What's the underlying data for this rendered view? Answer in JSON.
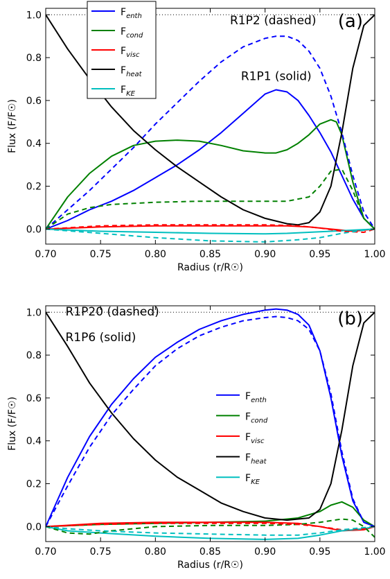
{
  "chart_data": [
    {
      "type": "line",
      "panel_label": "(a)",
      "xlabel": "Radius (r/R☉)",
      "ylabel": "Flux (F/F☉)",
      "xlim": [
        0.7,
        1.0
      ],
      "ylim": [
        -0.07,
        1.03
      ],
      "xticks": [
        "0.70",
        "0.75",
        "0.80",
        "0.85",
        "0.90",
        "0.95",
        "1.00"
      ],
      "yticks": [
        "0.0",
        "0.2",
        "0.4",
        "0.6",
        "0.8",
        "1.0"
      ],
      "reference_line": {
        "y": 1.0,
        "style": "dotted"
      },
      "legend_position": "top-left",
      "annotations": [
        {
          "text": "R1P2 (dashed)",
          "x": 0.868,
          "y": 0.955
        },
        {
          "text": "R1P1 (solid)",
          "x": 0.878,
          "y": 0.695
        }
      ],
      "series": [
        {
          "name": "F_enth",
          "legend": {
            "base": "F",
            "sub": "enth"
          },
          "run": "R1P1",
          "color": "#0000ff",
          "dash": "solid",
          "x": [
            0.7,
            0.72,
            0.74,
            0.76,
            0.78,
            0.8,
            0.82,
            0.84,
            0.86,
            0.88,
            0.9,
            0.91,
            0.92,
            0.93,
            0.94,
            0.95,
            0.96,
            0.97,
            0.98,
            0.99,
            1.0
          ],
          "y": [
            0.0,
            0.04,
            0.09,
            0.13,
            0.18,
            0.24,
            0.3,
            0.37,
            0.45,
            0.54,
            0.63,
            0.65,
            0.64,
            0.6,
            0.53,
            0.45,
            0.36,
            0.25,
            0.14,
            0.05,
            0.0
          ]
        },
        {
          "name": "F_cond",
          "legend": {
            "base": "F",
            "sub": "cond"
          },
          "run": "R1P1",
          "color": "#008000",
          "dash": "solid",
          "x": [
            0.7,
            0.72,
            0.74,
            0.76,
            0.78,
            0.8,
            0.82,
            0.84,
            0.86,
            0.88,
            0.9,
            0.91,
            0.92,
            0.93,
            0.94,
            0.95,
            0.96,
            0.965,
            0.97,
            0.98,
            0.99,
            1.0
          ],
          "y": [
            0.0,
            0.15,
            0.26,
            0.34,
            0.39,
            0.41,
            0.415,
            0.41,
            0.39,
            0.365,
            0.355,
            0.355,
            0.37,
            0.4,
            0.44,
            0.49,
            0.51,
            0.5,
            0.44,
            0.22,
            0.05,
            0.0
          ]
        },
        {
          "name": "F_visc",
          "legend": {
            "base": "F",
            "sub": "visc"
          },
          "run": "R1P1",
          "color": "#ff0000",
          "dash": "solid",
          "x": [
            0.7,
            0.75,
            0.8,
            0.85,
            0.9,
            0.92,
            0.94,
            0.96,
            0.97,
            0.98,
            1.0
          ],
          "y": [
            0.0,
            0.01,
            0.015,
            0.015,
            0.015,
            0.015,
            0.01,
            0.0,
            -0.005,
            -0.01,
            0.0
          ]
        },
        {
          "name": "F_heat",
          "legend": {
            "base": "F",
            "sub": "heat"
          },
          "run": "R1P1",
          "color": "#000000",
          "dash": "solid",
          "x": [
            0.7,
            0.72,
            0.74,
            0.76,
            0.78,
            0.8,
            0.82,
            0.84,
            0.86,
            0.88,
            0.9,
            0.92,
            0.93,
            0.94,
            0.95,
            0.96,
            0.97,
            0.98,
            0.99,
            1.0
          ],
          "y": [
            1.0,
            0.84,
            0.7,
            0.57,
            0.46,
            0.37,
            0.29,
            0.22,
            0.15,
            0.09,
            0.05,
            0.025,
            0.02,
            0.03,
            0.08,
            0.2,
            0.45,
            0.75,
            0.95,
            1.0
          ]
        },
        {
          "name": "F_KE",
          "legend": {
            "base": "F",
            "sub": "KE"
          },
          "run": "R1P1",
          "color": "#00bfbf",
          "dash": "solid",
          "x": [
            0.7,
            0.75,
            0.8,
            0.85,
            0.9,
            0.92,
            0.94,
            0.96,
            0.98,
            1.0
          ],
          "y": [
            0.0,
            -0.01,
            -0.015,
            -0.02,
            -0.022,
            -0.02,
            -0.015,
            -0.01,
            -0.005,
            0.0
          ]
        },
        {
          "name": "F_enth (R1P2)",
          "run": "R1P2",
          "color": "#0000ff",
          "dash": "dashed",
          "x": [
            0.7,
            0.72,
            0.74,
            0.76,
            0.78,
            0.8,
            0.82,
            0.84,
            0.86,
            0.88,
            0.9,
            0.91,
            0.92,
            0.93,
            0.94,
            0.95,
            0.96,
            0.97,
            0.98,
            0.99,
            1.0
          ],
          "y": [
            0.0,
            0.09,
            0.18,
            0.28,
            0.38,
            0.49,
            0.59,
            0.69,
            0.78,
            0.85,
            0.89,
            0.9,
            0.9,
            0.88,
            0.83,
            0.75,
            0.62,
            0.45,
            0.25,
            0.08,
            0.0
          ]
        },
        {
          "name": "F_cond (R1P2)",
          "run": "R1P2",
          "color": "#008000",
          "dash": "dashed",
          "x": [
            0.7,
            0.72,
            0.74,
            0.76,
            0.78,
            0.8,
            0.84,
            0.88,
            0.92,
            0.94,
            0.95,
            0.96,
            0.97,
            0.98,
            0.99,
            1.0
          ],
          "y": [
            0.0,
            0.07,
            0.1,
            0.115,
            0.12,
            0.125,
            0.13,
            0.13,
            0.13,
            0.15,
            0.2,
            0.27,
            0.28,
            0.18,
            0.05,
            0.0
          ]
        },
        {
          "name": "F_visc (R1P2)",
          "run": "R1P2",
          "color": "#ff0000",
          "dash": "dashed",
          "x": [
            0.7,
            0.75,
            0.8,
            0.85,
            0.9,
            0.93,
            0.95,
            0.97,
            0.99,
            1.0
          ],
          "y": [
            0.0,
            0.015,
            0.02,
            0.02,
            0.02,
            0.015,
            0.005,
            -0.01,
            -0.015,
            0.0
          ]
        },
        {
          "name": "F_KE (R1P2)",
          "run": "R1P2",
          "color": "#00bfbf",
          "dash": "dashed",
          "x": [
            0.7,
            0.75,
            0.8,
            0.85,
            0.9,
            0.93,
            0.95,
            0.97,
            0.99,
            1.0
          ],
          "y": [
            0.0,
            -0.02,
            -0.04,
            -0.055,
            -0.06,
            -0.05,
            -0.04,
            -0.02,
            -0.005,
            0.0
          ]
        }
      ]
    },
    {
      "type": "line",
      "panel_label": "(b)",
      "xlabel": "Radius (r/R☉)",
      "ylabel": "Flux (F/F☉)",
      "xlim": [
        0.7,
        1.0
      ],
      "ylim": [
        -0.07,
        1.03
      ],
      "xticks": [
        "0.70",
        "0.75",
        "0.80",
        "0.85",
        "0.90",
        "0.95",
        "1.00"
      ],
      "yticks": [
        "0.0",
        "0.2",
        "0.4",
        "0.6",
        "0.8",
        "1.0"
      ],
      "reference_line": {
        "y": 1.0,
        "style": "dotted"
      },
      "legend_position": "center-right",
      "annotations": [
        {
          "text": "R1P20 (dashed)",
          "x": 0.718,
          "y": 0.985
        },
        {
          "text": "R1P6 (solid)",
          "x": 0.718,
          "y": 0.865
        }
      ],
      "series": [
        {
          "name": "F_enth",
          "legend": {
            "base": "F",
            "sub": "enth"
          },
          "run": "R1P6",
          "color": "#0000ff",
          "dash": "solid",
          "x": [
            0.7,
            0.72,
            0.74,
            0.76,
            0.78,
            0.8,
            0.82,
            0.84,
            0.86,
            0.88,
            0.9,
            0.91,
            0.92,
            0.93,
            0.94,
            0.95,
            0.96,
            0.97,
            0.98,
            0.99,
            1.0
          ],
          "y": [
            0.0,
            0.23,
            0.42,
            0.57,
            0.69,
            0.79,
            0.86,
            0.92,
            0.96,
            0.99,
            1.01,
            1.015,
            1.01,
            0.99,
            0.94,
            0.82,
            0.6,
            0.33,
            0.12,
            0.02,
            0.0
          ]
        },
        {
          "name": "F_cond",
          "legend": {
            "base": "F",
            "sub": "cond"
          },
          "run": "R1P6",
          "color": "#008000",
          "dash": "solid",
          "x": [
            0.7,
            0.75,
            0.8,
            0.85,
            0.9,
            0.93,
            0.95,
            0.96,
            0.97,
            0.98,
            0.99,
            1.0
          ],
          "y": [
            0.0,
            0.01,
            0.015,
            0.02,
            0.025,
            0.04,
            0.07,
            0.1,
            0.115,
            0.09,
            0.03,
            0.0
          ]
        },
        {
          "name": "F_visc",
          "legend": {
            "base": "F",
            "sub": "visc"
          },
          "run": "R1P6",
          "color": "#ff0000",
          "dash": "solid",
          "x": [
            0.7,
            0.75,
            0.8,
            0.85,
            0.9,
            0.93,
            0.95,
            0.97,
            0.99,
            1.0
          ],
          "y": [
            0.0,
            0.015,
            0.02,
            0.02,
            0.02,
            0.015,
            0.0,
            -0.02,
            -0.015,
            0.0
          ]
        },
        {
          "name": "F_heat",
          "legend": {
            "base": "F",
            "sub": "heat"
          },
          "run": "R1P6",
          "color": "#000000",
          "dash": "solid",
          "x": [
            0.7,
            0.72,
            0.74,
            0.76,
            0.78,
            0.8,
            0.82,
            0.84,
            0.86,
            0.88,
            0.9,
            0.92,
            0.94,
            0.95,
            0.96,
            0.97,
            0.98,
            0.99,
            1.0
          ],
          "y": [
            1.0,
            0.84,
            0.67,
            0.53,
            0.41,
            0.31,
            0.23,
            0.17,
            0.11,
            0.07,
            0.04,
            0.03,
            0.04,
            0.08,
            0.2,
            0.45,
            0.75,
            0.95,
            1.0
          ]
        },
        {
          "name": "F_KE",
          "legend": {
            "base": "F",
            "sub": "KE"
          },
          "run": "R1P6",
          "color": "#00bfbf",
          "dash": "solid",
          "x": [
            0.7,
            0.72,
            0.75,
            0.8,
            0.85,
            0.9,
            0.93,
            0.95,
            0.97,
            0.99,
            1.0
          ],
          "y": [
            0.0,
            -0.02,
            -0.03,
            -0.045,
            -0.055,
            -0.06,
            -0.055,
            -0.04,
            -0.02,
            -0.01,
            0.0
          ]
        },
        {
          "name": "F_enth (R1P20)",
          "run": "R1P20",
          "color": "#0000ff",
          "dash": "dashed",
          "x": [
            0.7,
            0.72,
            0.74,
            0.76,
            0.78,
            0.8,
            0.82,
            0.84,
            0.86,
            0.88,
            0.9,
            0.91,
            0.92,
            0.93,
            0.94,
            0.95,
            0.96,
            0.97,
            0.98,
            0.99,
            1.0
          ],
          "y": [
            0.0,
            0.19,
            0.37,
            0.52,
            0.64,
            0.75,
            0.83,
            0.89,
            0.93,
            0.96,
            0.975,
            0.98,
            0.975,
            0.96,
            0.92,
            0.82,
            0.62,
            0.35,
            0.13,
            0.02,
            0.0
          ]
        },
        {
          "name": "F_cond (R1P20)",
          "run": "R1P20",
          "color": "#008000",
          "dash": "dashed",
          "x": [
            0.7,
            0.72,
            0.74,
            0.76,
            0.78,
            0.8,
            0.85,
            0.9,
            0.93,
            0.95,
            0.97,
            0.98,
            0.99,
            1.0
          ],
          "y": [
            0.0,
            -0.03,
            -0.035,
            -0.02,
            -0.01,
            0.0,
            0.005,
            0.005,
            0.01,
            0.02,
            0.035,
            0.03,
            0.0,
            -0.05
          ]
        },
        {
          "name": "F_visc (R1P20)",
          "run": "R1P20",
          "color": "#ff0000",
          "dash": "dashed",
          "x": [
            0.7,
            0.75,
            0.8,
            0.85,
            0.9,
            0.93,
            0.95,
            0.97,
            0.99,
            1.0
          ],
          "y": [
            0.0,
            0.01,
            0.015,
            0.015,
            0.015,
            0.01,
            0.0,
            -0.015,
            -0.01,
            0.0
          ]
        },
        {
          "name": "F_KE (R1P20)",
          "run": "R1P20",
          "color": "#00bfbf",
          "dash": "dashed",
          "x": [
            0.7,
            0.72,
            0.75,
            0.8,
            0.85,
            0.9,
            0.93,
            0.95,
            0.97,
            0.99,
            1.0
          ],
          "y": [
            0.0,
            -0.01,
            -0.02,
            -0.03,
            -0.035,
            -0.04,
            -0.04,
            -0.03,
            -0.015,
            -0.005,
            0.0
          ]
        }
      ]
    }
  ]
}
